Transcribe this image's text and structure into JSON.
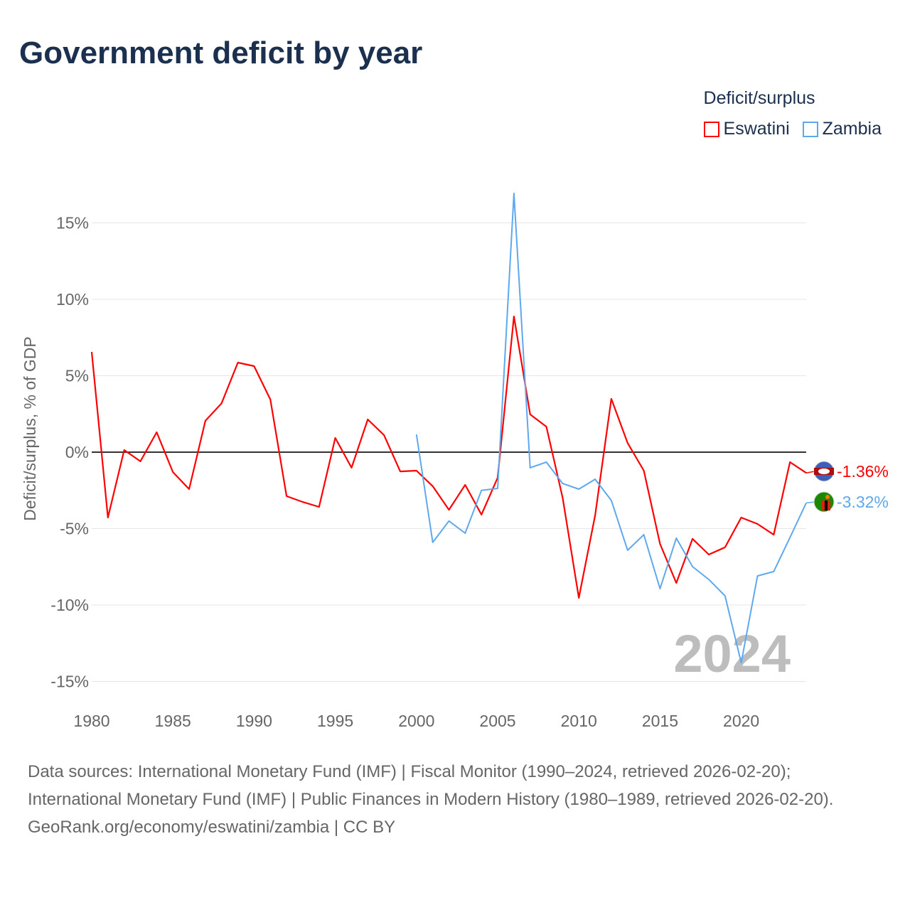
{
  "title": "Government deficit by year",
  "legend": {
    "title": "Deficit/surplus",
    "items": [
      {
        "name": "Eswatini",
        "color": "#ff0000"
      },
      {
        "name": "Zambia",
        "color": "#5ea8ef"
      }
    ]
  },
  "chart_data": {
    "type": "line",
    "title": "Government deficit by year",
    "ylabel": "Deficit/surplus, % of GDP",
    "xlabel": "",
    "ylim": [
      -16.5,
      18.5
    ],
    "xlim": [
      1980,
      2024
    ],
    "yticks": [
      15,
      10,
      5,
      0,
      -5,
      -10,
      -15
    ],
    "ytick_labels": [
      "15%",
      "10%",
      "5%",
      "0%",
      "-5%",
      "-10%",
      "-15%"
    ],
    "xticks": [
      1980,
      1985,
      1990,
      1995,
      2000,
      2005,
      2010,
      2015,
      2020
    ],
    "xtick_labels": [
      "1980",
      "1985",
      "1990",
      "1995",
      "2000",
      "2005",
      "2010",
      "2015",
      "2020"
    ],
    "grid": true,
    "year_watermark": "2024",
    "series": [
      {
        "name": "Eswatini",
        "color": "#ff0000",
        "end_label": "-1.36%",
        "x_start": 1980,
        "values": [
          6.56,
          -4.28,
          0.14,
          -0.6,
          1.3,
          -1.3,
          -2.42,
          2.05,
          3.2,
          5.86,
          5.63,
          3.44,
          -2.88,
          -3.26,
          -3.58,
          0.93,
          -1.02,
          2.14,
          1.12,
          -1.26,
          -1.21,
          -2.23,
          -3.77,
          -2.14,
          -4.09,
          -1.67,
          8.88,
          2.47,
          1.67,
          -2.98,
          -9.53,
          -4.14,
          3.49,
          0.6,
          -1.21,
          -6.0,
          -8.56,
          -5.67,
          -6.7,
          -6.23,
          -4.28,
          -4.7,
          -5.4,
          -0.65,
          -1.36
        ]
      },
      {
        "name": "Zambia",
        "color": "#5ea8ef",
        "end_label": "-3.32%",
        "x_start": 2000,
        "values": [
          1.16,
          -5.9,
          -4.5,
          -5.3,
          -2.5,
          -2.37,
          16.93,
          -1.02,
          -0.65,
          -2.05,
          -2.42,
          -1.77,
          -3.16,
          -6.42,
          -5.4,
          -8.93,
          -5.63,
          -7.49,
          -8.33,
          -9.4,
          -13.77,
          -8.1,
          -7.81,
          -5.58,
          -3.32
        ]
      }
    ]
  },
  "source": {
    "line1": "Data sources: International Monetary Fund (IMF) | Fiscal Monitor (1990–2024, retrieved 2026-02-20); International Monetary Fund (IMF) | Public Finances in Modern History (1980–1989, retrieved 2026-02-20).",
    "line2": "GeoRank.org/economy/eswatini/zambia | CC BY"
  }
}
